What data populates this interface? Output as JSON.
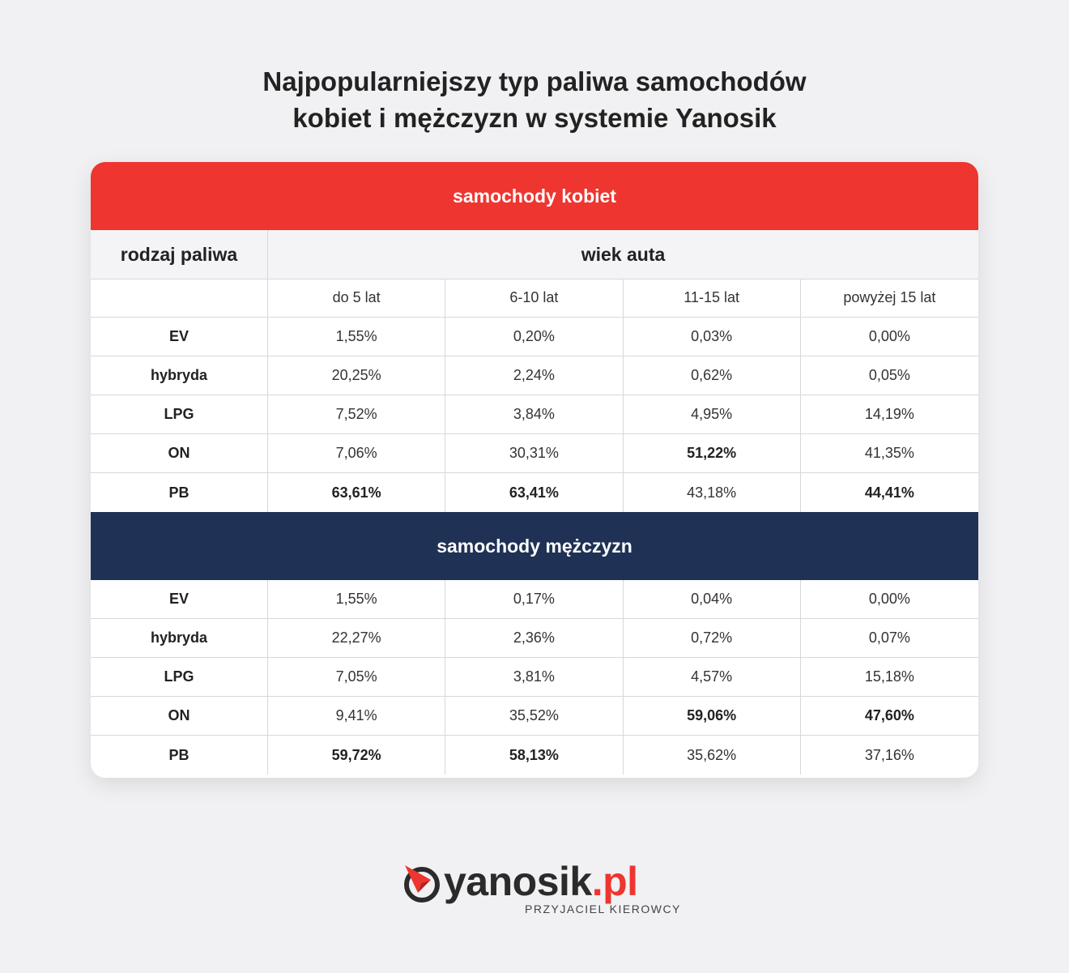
{
  "title_line1": "Najpopularniejszy typ paliwa samochodów",
  "title_line2": "kobiet i mężczyzn w systemie Yanosik",
  "women_header": "samochody kobiet",
  "men_header": "samochody mężczyzn",
  "col_header_fuel": "rodzaj paliwa",
  "col_header_age": "wiek auta",
  "age_groups": [
    "do 5 lat",
    "6-10 lat",
    "11-15 lat",
    "powyżej 15 lat"
  ],
  "logo": {
    "name": "yanosik",
    "tld": ".pl",
    "tagline": "PRZYJACIEL KIEROWCY",
    "icon": "compass-arrow-icon",
    "accent": "#ee3530"
  },
  "colors": {
    "women_band": "#ee3530",
    "men_band": "#1f3155"
  },
  "chart_data": {
    "type": "table",
    "title": "Najpopularniejszy typ paliwa samochodów kobiet i mężczyzn w systemie Yanosik",
    "columns": [
      "do 5 lat",
      "6-10 lat",
      "11-15 lat",
      "powyżej 15 lat"
    ],
    "groups": [
      {
        "name": "samochody kobiet",
        "rows": [
          {
            "fuel": "EV",
            "values": [
              "1,55%",
              "0,20%",
              "0,03%",
              "0,00%"
            ],
            "bold": [
              false,
              false,
              false,
              false
            ]
          },
          {
            "fuel": "hybryda",
            "values": [
              "20,25%",
              "2,24%",
              "0,62%",
              "0,05%"
            ],
            "bold": [
              false,
              false,
              false,
              false
            ]
          },
          {
            "fuel": "LPG",
            "values": [
              "7,52%",
              "3,84%",
              "4,95%",
              "14,19%"
            ],
            "bold": [
              false,
              false,
              false,
              false
            ]
          },
          {
            "fuel": "ON",
            "values": [
              "7,06%",
              "30,31%",
              "51,22%",
              "41,35%"
            ],
            "bold": [
              false,
              false,
              true,
              false
            ]
          },
          {
            "fuel": "PB",
            "values": [
              "63,61%",
              "63,41%",
              "43,18%",
              "44,41%"
            ],
            "bold": [
              true,
              true,
              false,
              true
            ]
          }
        ]
      },
      {
        "name": "samochody mężczyzn",
        "rows": [
          {
            "fuel": "EV",
            "values": [
              "1,55%",
              "0,17%",
              "0,04%",
              "0,00%"
            ],
            "bold": [
              false,
              false,
              false,
              false
            ]
          },
          {
            "fuel": "hybryda",
            "values": [
              "22,27%",
              "2,36%",
              "0,72%",
              "0,07%"
            ],
            "bold": [
              false,
              false,
              false,
              false
            ]
          },
          {
            "fuel": "LPG",
            "values": [
              "7,05%",
              "3,81%",
              "4,57%",
              "15,18%"
            ],
            "bold": [
              false,
              false,
              false,
              false
            ]
          },
          {
            "fuel": "ON",
            "values": [
              "9,41%",
              "35,52%",
              "59,06%",
              "47,60%"
            ],
            "bold": [
              false,
              false,
              true,
              true
            ]
          },
          {
            "fuel": "PB",
            "values": [
              "59,72%",
              "58,13%",
              "35,62%",
              "37,16%"
            ],
            "bold": [
              true,
              true,
              false,
              false
            ]
          }
        ]
      }
    ]
  }
}
